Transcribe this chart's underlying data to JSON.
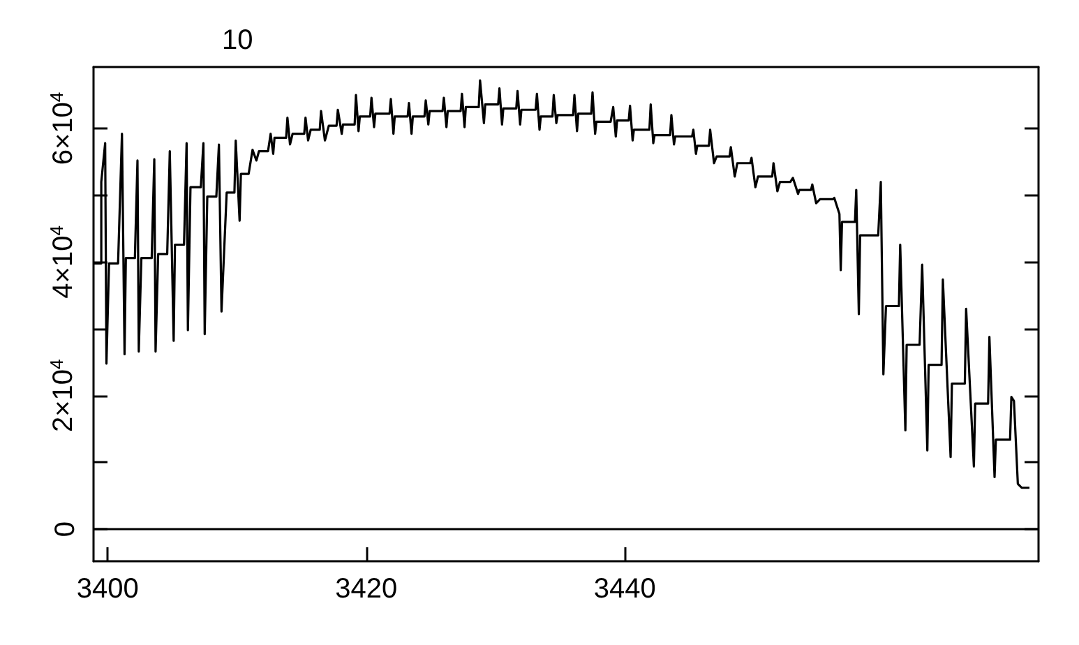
{
  "chart_data": {
    "type": "line",
    "title": "10",
    "x": [
      3398.9,
      3399.5,
      3399.5,
      3399.8,
      3399.9,
      3400.1,
      3400.8,
      3401.1,
      3401.3,
      3401.4,
      3402.1,
      3402.3,
      3402.4,
      3402.6,
      3403.4,
      3403.6,
      3403.7,
      3403.9,
      3404.6,
      3404.8,
      3405.1,
      3405.2,
      3405.9,
      3406.1,
      3406.2,
      3406.4,
      3407.2,
      3407.4,
      3407.5,
      3407.7,
      3408.4,
      3408.6,
      3408.8,
      3409.2,
      3409.8,
      3409.9,
      3410.2,
      3410.3,
      3410.9,
      3411.2,
      3411.5,
      3411.7,
      3412.4,
      3412.6,
      3412.8,
      3412.9,
      3413.8,
      3413.9,
      3414.1,
      3414.3,
      3415.2,
      3415.3,
      3415.5,
      3415.7,
      3416.4,
      3416.5,
      3416.8,
      3417.1,
      3417.7,
      3417.8,
      3418.1,
      3418.2,
      3419.1,
      3419.2,
      3419.4,
      3419.5,
      3420.3,
      3420.4,
      3420.6,
      3420.7,
      3421.8,
      3421.9,
      3422.1,
      3422.2,
      3423.2,
      3423.3,
      3423.5,
      3423.6,
      3424.5,
      3424.6,
      3424.8,
      3424.9,
      3425.9,
      3426.0,
      3426.2,
      3426.3,
      3427.3,
      3427.4,
      3427.6,
      3427.7,
      3428.7,
      3428.8,
      3429.1,
      3429.2,
      3430.2,
      3430.3,
      3430.5,
      3430.6,
      3431.6,
      3431.7,
      3431.9,
      3432.0,
      3433.1,
      3433.2,
      3433.4,
      3433.5,
      3434.4,
      3434.5,
      3434.7,
      3434.8,
      3436.0,
      3436.1,
      3436.3,
      3436.4,
      3437.4,
      3437.5,
      3437.7,
      3437.8,
      3438.9,
      3439.1,
      3439.3,
      3439.4,
      3440.3,
      3440.4,
      3440.6,
      3440.7,
      3441.9,
      3442.0,
      3442.2,
      3442.3,
      3443.5,
      3443.6,
      3443.8,
      3443.9,
      3445.2,
      3445.3,
      3445.5,
      3445.6,
      3446.5,
      3446.6,
      3446.9,
      3447.1,
      3448.1,
      3448.2,
      3448.5,
      3448.7,
      3449.7,
      3449.8,
      3450.1,
      3450.3,
      3451.4,
      3451.5,
      3451.8,
      3452.0,
      3452.8,
      3453.0,
      3453.4,
      3453.5,
      3454.4,
      3454.5,
      3454.8,
      3455.1,
      3456.1,
      3456.2,
      3456.6,
      3456.7,
      3456.8,
      3457.8,
      3457.9,
      3458.1,
      3458.2,
      3459.6,
      3459.8,
      3460.0,
      3460.2,
      3461.2,
      3461.3,
      3461.7,
      3461.8,
      3462.8,
      3463.0,
      3463.4,
      3463.5,
      3464.5,
      3464.6,
      3465.2,
      3465.3,
      3466.3,
      3466.4,
      3467.0,
      3467.1,
      3468.1,
      3468.2,
      3468.6,
      3468.7,
      3469.8,
      3469.9,
      3470.1,
      3470.4,
      3470.7,
      3471.3
    ],
    "series": [
      {
        "color": "#000000",
        "values": [
          39800,
          39800,
          52000,
          57800,
          24800,
          39800,
          39800,
          59200,
          26200,
          40600,
          40600,
          55200,
          26600,
          40600,
          40600,
          55400,
          26600,
          41200,
          41200,
          56600,
          28200,
          42600,
          42600,
          57800,
          29800,
          51200,
          51200,
          57800,
          29200,
          49800,
          49800,
          57600,
          32600,
          50400,
          50400,
          58200,
          46200,
          53200,
          53200,
          56800,
          55200,
          56600,
          56600,
          59200,
          56200,
          58600,
          58600,
          61600,
          57600,
          59200,
          59200,
          61600,
          58200,
          59800,
          59800,
          62600,
          58200,
          60400,
          60400,
          62800,
          59200,
          60600,
          60600,
          65000,
          59600,
          61800,
          61800,
          64600,
          60200,
          62200,
          62200,
          64400,
          59200,
          61800,
          61800,
          63800,
          59200,
          61800,
          61800,
          64200,
          60600,
          62600,
          62600,
          64600,
          60200,
          62600,
          62600,
          65200,
          60200,
          63200,
          63200,
          67200,
          60800,
          63600,
          63600,
          66000,
          60600,
          63000,
          63000,
          65600,
          60600,
          62800,
          62800,
          65200,
          59800,
          61800,
          61800,
          65000,
          60800,
          62000,
          62000,
          65000,
          59600,
          62200,
          62200,
          65400,
          59200,
          61000,
          61000,
          63200,
          58800,
          61200,
          61200,
          63400,
          58200,
          59800,
          59800,
          63600,
          57800,
          59000,
          59000,
          62000,
          57600,
          58800,
          58800,
          59800,
          56200,
          57400,
          57400,
          59800,
          54800,
          55800,
          55800,
          57200,
          52800,
          54800,
          54800,
          55600,
          51200,
          52800,
          52800,
          54800,
          50600,
          52000,
          52000,
          52600,
          50200,
          50800,
          50800,
          51600,
          48800,
          49400,
          49400,
          49600,
          47200,
          38800,
          46000,
          46000,
          50800,
          32200,
          44000,
          44000,
          52000,
          23200,
          33400,
          33400,
          42600,
          14800,
          27600,
          27600,
          39600,
          11800,
          24600,
          24600,
          37400,
          10800,
          21800,
          21800,
          33000,
          9400,
          18800,
          18800,
          28800,
          7800,
          13400,
          13400,
          19800,
          19200,
          6800,
          6200,
          6200
        ]
      }
    ],
    "xlim": [
      3398.9,
      3472
    ],
    "xticks": [
      3400,
      3420,
      3440
    ],
    "ylim": [
      -4800,
      69200
    ],
    "yticks": [
      0,
      {
        "value": 10000,
        "label": null
      },
      {
        "value": 20000,
        "label": "2×10$^{4}$"
      },
      {
        "value": 30000,
        "label": null
      },
      {
        "value": 40000,
        "label": "4×10$^{4}$"
      },
      {
        "value": 50000,
        "label": null
      },
      {
        "value": 60000,
        "label": "6×10$^{4}$"
      }
    ],
    "ref_lines": [
      {
        "axis": "y",
        "value": 0
      }
    ]
  }
}
